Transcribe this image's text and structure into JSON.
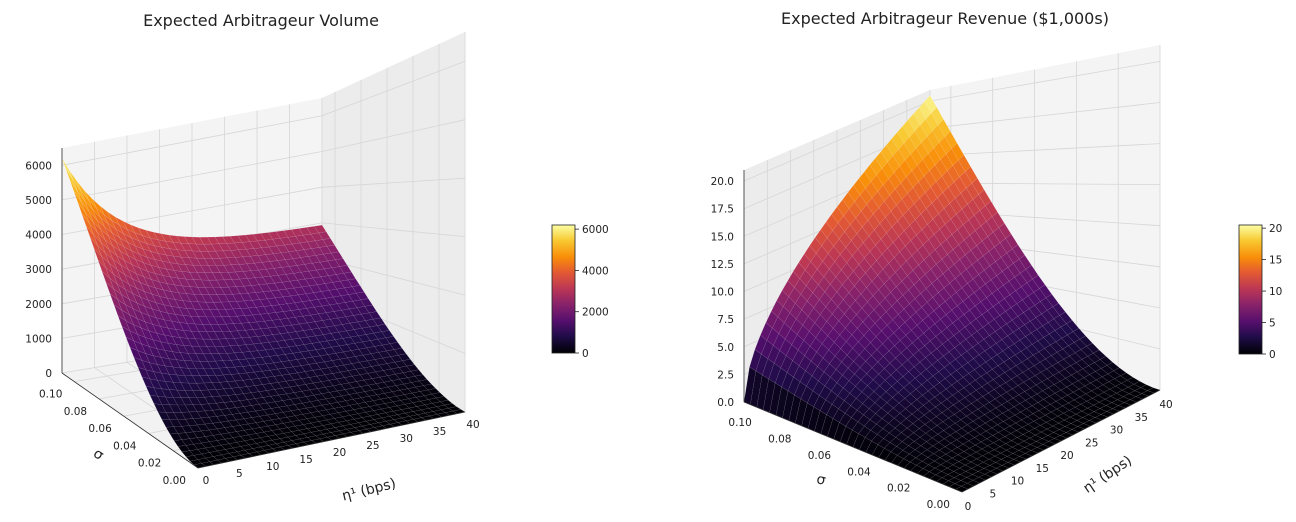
{
  "chart_data": [
    {
      "type": "surface3d",
      "title": "Expected Arbitrageur Volume",
      "xlabel": "η¹ (bps)",
      "ylabel": "σ",
      "zlabel": "",
      "x_ticks": [
        0,
        5,
        10,
        15,
        20,
        25,
        30,
        35,
        40
      ],
      "y_ticks": [
        0.0,
        0.02,
        0.04,
        0.06,
        0.08,
        0.1
      ],
      "y_tick_labels": [
        "0.00",
        "0.02",
        "0.04",
        "0.06",
        "0.08",
        "0.10"
      ],
      "z_ticks": [
        0,
        1000,
        2000,
        3000,
        4000,
        5000,
        6000
      ],
      "xlim": [
        0,
        40
      ],
      "ylim": [
        0,
        0.11
      ],
      "zlim": [
        0,
        6500
      ],
      "colormap": "inferno",
      "colorbar": {
        "ticks": [
          0,
          2000,
          4000,
          6000
        ],
        "range": [
          0,
          6200
        ]
      },
      "surface_samples": [
        {
          "eta_bps": 0,
          "sigma": 0.11,
          "value": 6200
        },
        {
          "eta_bps": 40,
          "sigma": 0.11,
          "value": 2900
        },
        {
          "eta_bps": 0,
          "sigma": 0.0,
          "value": 0
        },
        {
          "eta_bps": 40,
          "sigma": 0.0,
          "value": 0
        }
      ]
    },
    {
      "type": "surface3d",
      "title": "Expected Arbitrageur Revenue ($1,000s)",
      "xlabel": "η¹ (bps)",
      "ylabel": "σ",
      "zlabel": "",
      "x_ticks": [
        0,
        5,
        10,
        15,
        20,
        25,
        30,
        35,
        40
      ],
      "y_ticks": [
        0.0,
        0.02,
        0.04,
        0.06,
        0.08,
        0.1
      ],
      "y_tick_labels": [
        "0.00",
        "0.02",
        "0.04",
        "0.06",
        "0.08",
        "0.10"
      ],
      "z_ticks": [
        0,
        2.5,
        5,
        7.5,
        10,
        12.5,
        15,
        17.5,
        20
      ],
      "z_tick_labels": [
        "0.0",
        "2.5",
        "5.0",
        "7.5",
        "10.0",
        "12.5",
        "15.0",
        "17.5",
        "20.0"
      ],
      "xlim": [
        0,
        40
      ],
      "ylim": [
        0,
        0.11
      ],
      "zlim": [
        0,
        21
      ],
      "colormap": "inferno",
      "colorbar": {
        "ticks": [
          0,
          5,
          10,
          15,
          20
        ],
        "range": [
          0,
          20.5
        ]
      },
      "surface_samples": [
        {
          "eta_bps": 40,
          "sigma": 0.11,
          "value": 20.5
        },
        {
          "eta_bps": 0,
          "sigma": 0.11,
          "value": 0
        },
        {
          "eta_bps": 40,
          "sigma": 0.0,
          "value": 0
        },
        {
          "eta_bps": 0,
          "sigma": 0.0,
          "value": 0
        }
      ]
    }
  ]
}
